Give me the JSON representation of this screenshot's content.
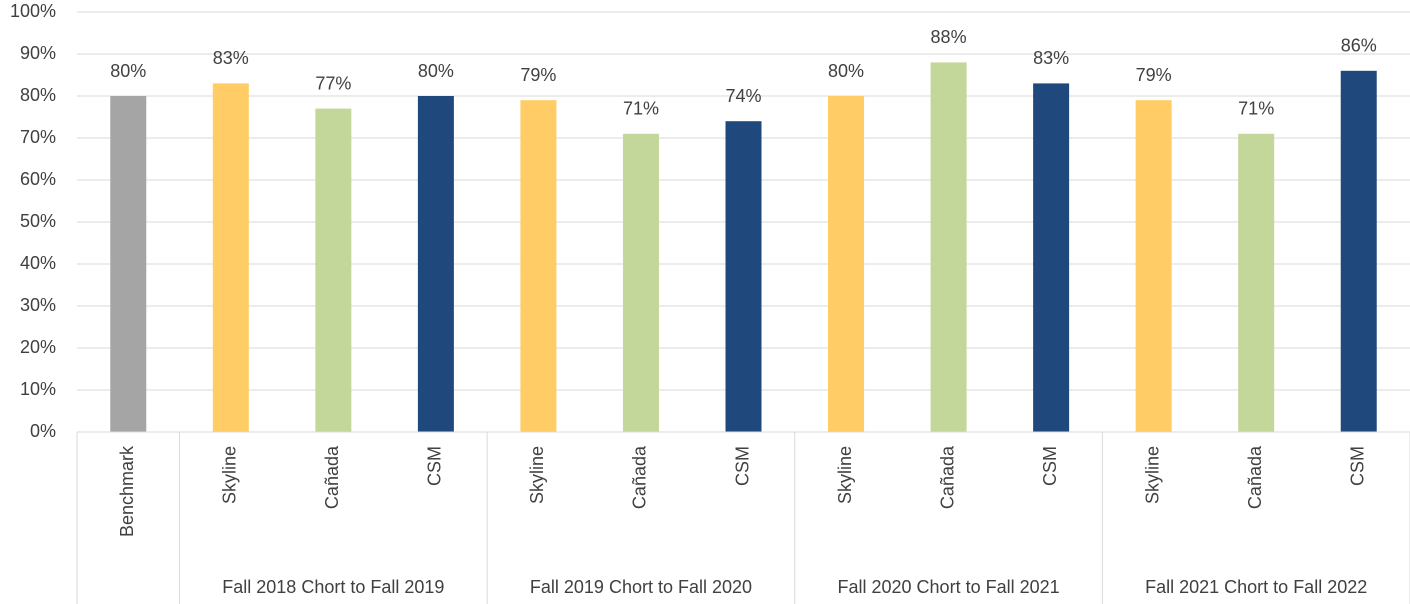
{
  "chart_data": {
    "type": "bar",
    "groups": [
      {
        "label": null,
        "categories": [
          "Benchmark"
        ],
        "values": [
          80
        ],
        "value_labels": [
          "80%"
        ],
        "colors": [
          "#a5a5a5"
        ]
      },
      {
        "label": "Fall 2018 Chort to Fall 2019",
        "categories": [
          "Skyline",
          "Cañada",
          "CSM"
        ],
        "values": [
          83,
          77,
          80
        ],
        "value_labels": [
          "83%",
          "77%",
          "80%"
        ],
        "colors": [
          "#ffcc66",
          "#c4d79b",
          "#1f497d"
        ]
      },
      {
        "label": "Fall 2019 Chort to Fall 2020",
        "categories": [
          "Skyline",
          "Cañada",
          "CSM"
        ],
        "values": [
          79,
          71,
          74
        ],
        "value_labels": [
          "79%",
          "71%",
          "74%"
        ],
        "colors": [
          "#ffcc66",
          "#c4d79b",
          "#1f497d"
        ]
      },
      {
        "label": "Fall 2020 Chort to Fall 2021",
        "categories": [
          "Skyline",
          "Cañada",
          "CSM"
        ],
        "values": [
          80,
          88,
          83
        ],
        "value_labels": [
          "80%",
          "88%",
          "83%"
        ],
        "colors": [
          "#ffcc66",
          "#c4d79b",
          "#1f497d"
        ]
      },
      {
        "label": "Fall 2021 Chort to Fall 2022",
        "categories": [
          "Skyline",
          "Cañada",
          "CSM"
        ],
        "values": [
          79,
          71,
          86
        ],
        "value_labels": [
          "79%",
          "71%",
          "86%"
        ],
        "colors": [
          "#ffcc66",
          "#c4d79b",
          "#1f497d"
        ]
      }
    ],
    "ylim": [
      0,
      100
    ],
    "yticks": [
      {
        "value": 0,
        "label": "0%"
      },
      {
        "value": 10,
        "label": "10%"
      },
      {
        "value": 20,
        "label": "20%"
      },
      {
        "value": 30,
        "label": "30%"
      },
      {
        "value": 40,
        "label": "40%"
      },
      {
        "value": 50,
        "label": "50%"
      },
      {
        "value": 60,
        "label": "60%"
      },
      {
        "value": 70,
        "label": "70%"
      },
      {
        "value": 80,
        "label": "80%"
      },
      {
        "value": 90,
        "label": "90%"
      },
      {
        "value": 100,
        "label": "100%"
      }
    ],
    "grid": true
  }
}
